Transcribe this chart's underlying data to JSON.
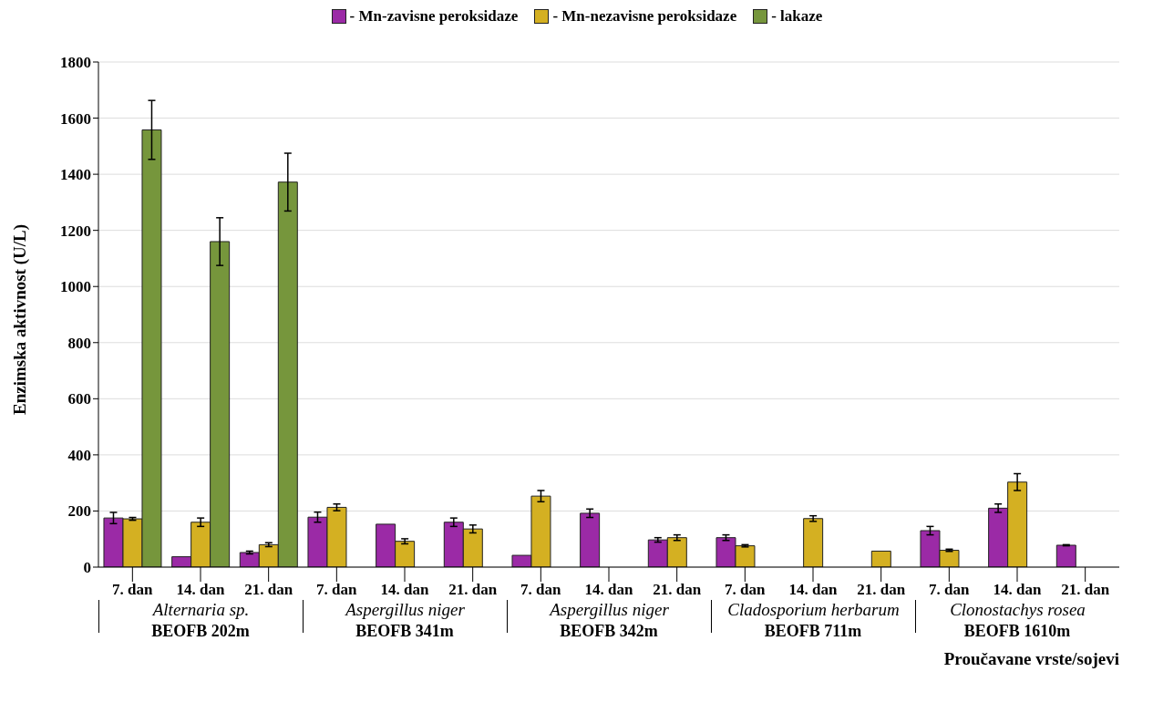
{
  "chart_data": {
    "type": "bar",
    "ylabel": "Enzimska aktivnost (U/L)",
    "xlabel": "Proučavane vrste/sojevi",
    "categories": [
      "7. dan",
      "14. dan",
      "21. dan",
      "7. dan",
      "14. dan",
      "21. dan",
      "7. dan",
      "14. dan",
      "21. dan",
      "7. dan",
      "14. dan",
      "21. dan",
      "7. dan",
      "14. dan",
      "21. dan"
    ],
    "series": [
      {
        "name": "- Mn-zavisne peroksidaze",
        "color": "#9b2aa6",
        "values": [
          175,
          37,
          52,
          178,
          153,
          160,
          42,
          192,
          97,
          105,
          null,
          null,
          130,
          210,
          78
        ],
        "errors": [
          20,
          null,
          5,
          18,
          null,
          15,
          null,
          15,
          8,
          10,
          null,
          null,
          15,
          15,
          2
        ]
      },
      {
        "name": "- Mn-nezavisne peroksidaze",
        "color": "#d4b022",
        "values": [
          172,
          160,
          80,
          213,
          92,
          136,
          253,
          null,
          105,
          76,
          173,
          57,
          60,
          303,
          null
        ],
        "errors": [
          5,
          15,
          7,
          12,
          9,
          14,
          20,
          null,
          10,
          4,
          10,
          null,
          4,
          30,
          null
        ]
      },
      {
        "name": "- lakaze",
        "color": "#76963c",
        "values": [
          1558,
          1160,
          1372,
          null,
          null,
          null,
          null,
          null,
          null,
          null,
          null,
          null,
          null,
          null,
          null
        ],
        "errors": [
          105,
          85,
          103,
          null,
          null,
          null,
          null,
          null,
          null,
          null,
          null,
          null,
          null,
          null,
          null
        ]
      }
    ],
    "annotations": [
      "Alternaria sp.",
      "BEOFB 202m",
      "Aspergillus niger",
      "BEOFB 341m",
      "Aspergillus niger",
      "BEOFB 342m",
      "Cladosporium herbarum",
      "BEOFB 711m",
      "Clonostachys rosea",
      "BEOFB 1610m"
    ],
    "ylim": [
      0,
      1800
    ],
    "yticks": [
      0,
      200,
      400,
      600,
      800,
      1000,
      1200,
      1400,
      1600,
      1800
    ],
    "grid": "y",
    "legend": "top"
  }
}
